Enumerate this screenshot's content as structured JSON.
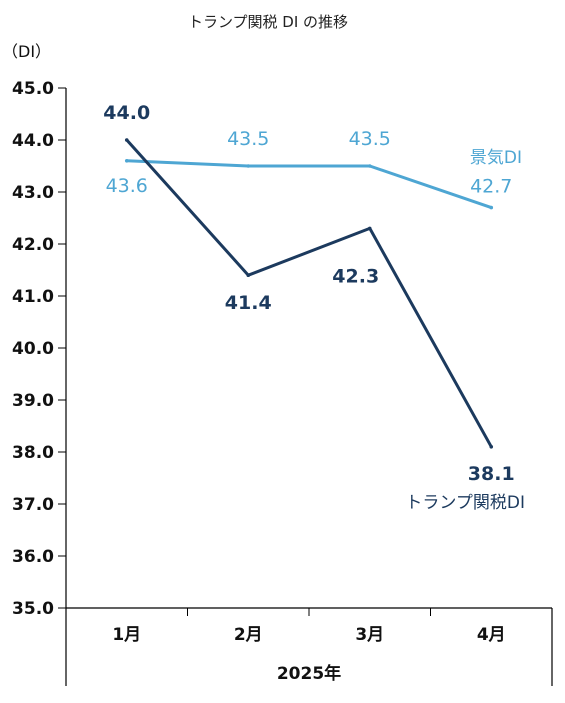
{
  "chart_data": {
    "type": "line",
    "title": "トランプ関税 DI の推移",
    "unit_label": "（DI）",
    "categories": [
      "1月",
      "2月",
      "3月",
      "4月"
    ],
    "x_group_label": "2025年",
    "ylim": [
      35.0,
      45.0
    ],
    "yticks": [
      "35.0",
      "36.0",
      "37.0",
      "38.0",
      "39.0",
      "40.0",
      "41.0",
      "42.0",
      "43.0",
      "44.0",
      "45.0"
    ],
    "grid": false,
    "series": [
      {
        "name": "トランプ関税DI",
        "values": [
          44.0,
          41.4,
          42.3,
          38.1
        ],
        "labels": [
          "44.0",
          "41.4",
          "42.3",
          "38.1"
        ],
        "color": "#1c3a5e"
      },
      {
        "name": "景気DI",
        "values": [
          43.6,
          43.5,
          43.5,
          42.7
        ],
        "labels": [
          "43.6",
          "43.5",
          "43.5",
          "42.7"
        ],
        "color": "#4ea6d3"
      }
    ]
  }
}
